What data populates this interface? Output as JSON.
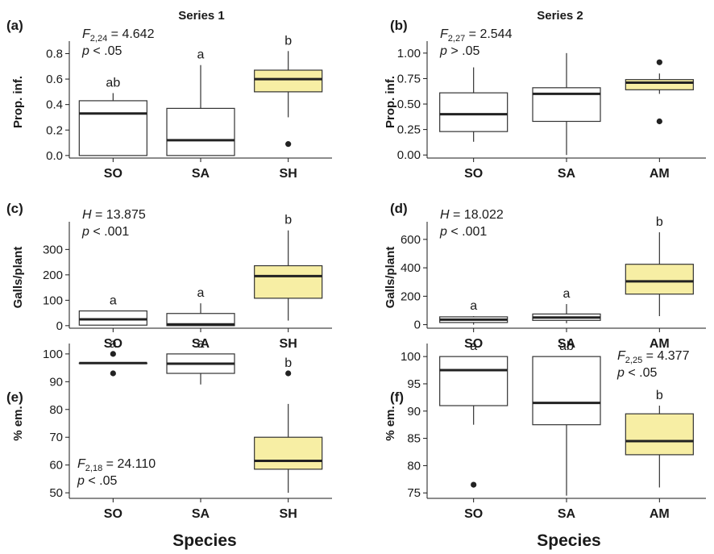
{
  "figure": {
    "column_titles": [
      "Series 1",
      "Series 2"
    ],
    "xlabel": "Species",
    "highlight_color": "#f7eea4",
    "box_fill": "#ffffff",
    "stroke_color": "#333333"
  },
  "chart_data": [
    {
      "panel": "(a)",
      "type": "boxplot",
      "ylabel": "Prop. inf.",
      "ylim": [
        -0.02,
        0.86
      ],
      "yticks": [
        "0.0",
        "0.2",
        "0.4",
        "0.6",
        "0.8"
      ],
      "yticks_values": [
        0,
        0.2,
        0.4,
        0.6,
        0.8
      ],
      "categories": [
        "SO",
        "SA",
        "SH"
      ],
      "boxes": [
        {
          "whisker_low": 0.0,
          "q1": 0.0,
          "median": 0.33,
          "q3": 0.43,
          "whisker_high": 0.49,
          "outliers": [],
          "letter": "ab",
          "highlight": false
        },
        {
          "whisker_low": 0.0,
          "q1": 0.0,
          "median": 0.12,
          "q3": 0.37,
          "whisker_high": 0.71,
          "outliers": [],
          "letter": "a",
          "highlight": false
        },
        {
          "whisker_low": 0.3,
          "q1": 0.5,
          "median": 0.6,
          "q3": 0.67,
          "whisker_high": 0.82,
          "outliers": [
            0.09
          ],
          "letter": "b",
          "highlight": true
        }
      ],
      "stat": {
        "prefix": "F",
        "sub": "2,24",
        "value": "= 4.642",
        "p": "p < .05",
        "position": "top-left"
      }
    },
    {
      "panel": "(b)",
      "type": "boxplot",
      "ylabel": "Prop. inf.",
      "ylim": [
        -0.03,
        1.07
      ],
      "yticks": [
        "0.00",
        "0.25",
        "0.50",
        "0.75",
        "1.00"
      ],
      "yticks_values": [
        0,
        0.25,
        0.5,
        0.75,
        1.0
      ],
      "categories": [
        "SO",
        "SA",
        "AM"
      ],
      "boxes": [
        {
          "whisker_low": 0.13,
          "q1": 0.23,
          "median": 0.4,
          "q3": 0.61,
          "whisker_high": 0.86,
          "outliers": [],
          "letter": "",
          "highlight": false
        },
        {
          "whisker_low": 0.0,
          "q1": 0.33,
          "median": 0.6,
          "q3": 0.66,
          "whisker_high": 1.0,
          "outliers": [],
          "letter": "",
          "highlight": false
        },
        {
          "whisker_low": 0.6,
          "q1": 0.64,
          "median": 0.71,
          "q3": 0.74,
          "whisker_high": 0.8,
          "outliers": [
            0.91,
            0.33
          ],
          "letter": "",
          "highlight": true
        }
      ],
      "stat": {
        "prefix": "F",
        "sub": "2,27",
        "value": "= 2.544",
        "p": "p > .05",
        "position": "top-left"
      }
    },
    {
      "panel": "(c)",
      "type": "boxplot",
      "ylabel": "Galls/plant",
      "ylim": [
        -10,
        390
      ],
      "yticks": [
        "0",
        "100",
        "200",
        "300"
      ],
      "yticks_values": [
        0,
        100,
        200,
        300
      ],
      "categories": [
        "SO",
        "SA",
        "SH"
      ],
      "boxes": [
        {
          "whisker_low": 0,
          "q1": 2,
          "median": 25,
          "q3": 58,
          "whisker_high": 58,
          "outliers": [],
          "letter": "a",
          "highlight": false
        },
        {
          "whisker_low": 0,
          "q1": 0,
          "median": 5,
          "q3": 48,
          "whisker_high": 88,
          "outliers": [],
          "letter": "a",
          "highlight": false
        },
        {
          "whisker_low": 20,
          "q1": 108,
          "median": 195,
          "q3": 236,
          "whisker_high": 375,
          "outliers": [],
          "letter": "b",
          "highlight": true
        }
      ],
      "stat": {
        "prefix": "H",
        "sub": "",
        "value": "= 13.875",
        "p": "p < .001",
        "position": "top-left"
      }
    },
    {
      "panel": "(d)",
      "type": "boxplot",
      "ylabel": "Galls/plant",
      "ylim": [
        -25,
        690
      ],
      "yticks": [
        "0",
        "200",
        "400",
        "600"
      ],
      "yticks_values": [
        0,
        200,
        400,
        600
      ],
      "categories": [
        "SO",
        "SA",
        "AM"
      ],
      "boxes": [
        {
          "whisker_low": 0,
          "q1": 15,
          "median": 35,
          "q3": 55,
          "whisker_high": 60,
          "outliers": [],
          "letter": "a",
          "highlight": false
        },
        {
          "whisker_low": 10,
          "q1": 30,
          "median": 50,
          "q3": 75,
          "whisker_high": 145,
          "outliers": [],
          "letter": "a",
          "highlight": false
        },
        {
          "whisker_low": 60,
          "q1": 215,
          "median": 305,
          "q3": 425,
          "whisker_high": 650,
          "outliers": [],
          "letter": "b",
          "highlight": true
        }
      ],
      "stat": {
        "prefix": "H",
        "sub": "",
        "value": "= 18.022",
        "p": "p < .001",
        "position": "top-left"
      }
    },
    {
      "panel": "(e)",
      "type": "boxplot",
      "ylabel": "% em.",
      "ylim": [
        48,
        102
      ],
      "yticks": [
        "50",
        "60",
        "70",
        "80",
        "90",
        "100"
      ],
      "yticks_values": [
        50,
        60,
        70,
        80,
        90,
        100
      ],
      "categories": [
        "SO",
        "SA",
        "SH"
      ],
      "boxes": [
        {
          "whisker_low": 96.7,
          "q1": 96.7,
          "median": 96.7,
          "q3": 96.7,
          "whisker_high": 96.7,
          "outliers": [
            100,
            93
          ],
          "letter": "a",
          "highlight": false
        },
        {
          "whisker_low": 89,
          "q1": 93,
          "median": 96.5,
          "q3": 100,
          "whisker_high": 100,
          "outliers": [],
          "letter": "a",
          "highlight": false
        },
        {
          "whisker_low": 50,
          "q1": 58.5,
          "median": 61.5,
          "q3": 70,
          "whisker_high": 82,
          "outliers": [
            93
          ],
          "letter": "b",
          "highlight": true
        }
      ],
      "stat": {
        "prefix": "F",
        "sub": "2,18",
        "value": "= 24.110",
        "p": "p < .05",
        "position": "bottom-left"
      }
    },
    {
      "panel": "(f)",
      "type": "boxplot",
      "ylabel": "% em.",
      "ylim": [
        74,
        101.5
      ],
      "yticks": [
        "75",
        "80",
        "85",
        "90",
        "95",
        "100"
      ],
      "yticks_values": [
        75,
        80,
        85,
        90,
        95,
        100
      ],
      "categories": [
        "SO",
        "SA",
        "AM"
      ],
      "boxes": [
        {
          "whisker_low": 87.5,
          "q1": 91,
          "median": 97.5,
          "q3": 100,
          "whisker_high": 100,
          "outliers": [
            76.5
          ],
          "letter": "a",
          "highlight": false
        },
        {
          "whisker_low": 74.5,
          "q1": 87.5,
          "median": 91.5,
          "q3": 100,
          "whisker_high": 100,
          "outliers": [],
          "letter": "ab",
          "highlight": false
        },
        {
          "whisker_low": 76,
          "q1": 82,
          "median": 84.5,
          "q3": 89.5,
          "whisker_high": 91,
          "outliers": [],
          "letter": "b",
          "highlight": true
        }
      ],
      "stat": {
        "prefix": "F",
        "sub": "2,25",
        "value": "= 4.377",
        "p": "p < .05",
        "position": "top-right"
      }
    }
  ]
}
